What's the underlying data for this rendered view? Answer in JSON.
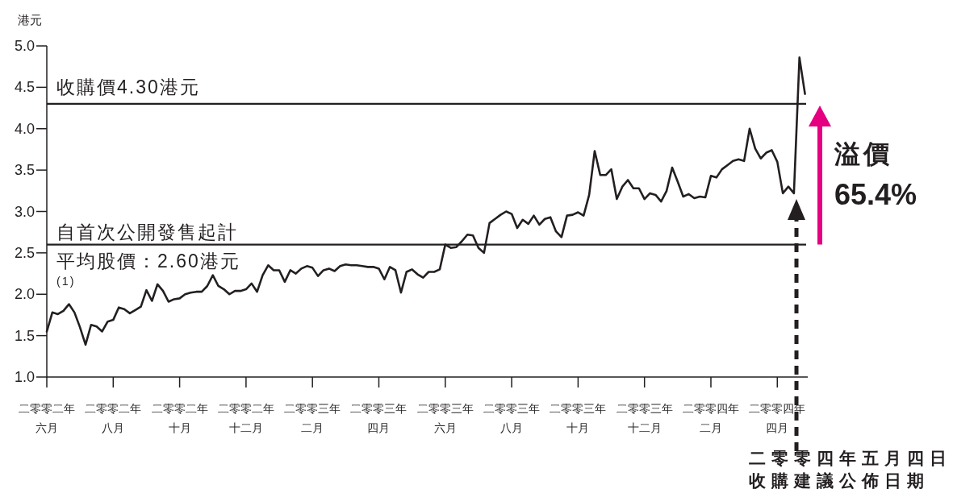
{
  "chart_data": {
    "type": "line",
    "ylabel": "港元",
    "categories": [
      "二零零二年六月",
      null,
      null,
      null,
      null,
      null,
      null,
      null,
      null,
      null,
      null,
      null,
      "二零零二年八月",
      null,
      null,
      null,
      null,
      null,
      null,
      null,
      null,
      null,
      null,
      null,
      "二零零二年十月",
      null,
      null,
      null,
      null,
      null,
      null,
      null,
      null,
      null,
      null,
      null,
      "二零零二年十二月",
      null,
      null,
      null,
      null,
      null,
      null,
      null,
      null,
      null,
      null,
      null,
      "二零零三年二月",
      null,
      null,
      null,
      null,
      null,
      null,
      null,
      null,
      null,
      null,
      null,
      "二零零三年四月",
      null,
      null,
      null,
      null,
      null,
      null,
      null,
      null,
      null,
      null,
      null,
      "二零零三年六月",
      null,
      null,
      null,
      null,
      null,
      null,
      null,
      null,
      null,
      null,
      null,
      "二零零三年八月",
      null,
      null,
      null,
      null,
      null,
      null,
      null,
      null,
      null,
      null,
      null,
      "二零零三年十月",
      null,
      null,
      null,
      null,
      null,
      null,
      null,
      null,
      null,
      null,
      null,
      "二零零三年十二月",
      null,
      null,
      null,
      null,
      null,
      null,
      null,
      null,
      null,
      null,
      null,
      "二零零四年二月",
      null,
      null,
      null,
      null,
      null,
      null,
      null,
      null,
      null,
      null,
      null,
      "二零零四年四月",
      null,
      null,
      null,
      null,
      null
    ],
    "series": [
      {
        "color": "#231f20",
        "values": [
          1.55,
          1.78,
          1.76,
          1.8,
          1.88,
          1.78,
          1.6,
          1.39,
          1.63,
          1.61,
          1.55,
          1.67,
          1.69,
          1.84,
          1.82,
          1.77,
          1.81,
          1.85,
          2.05,
          1.92,
          2.12,
          2.04,
          1.91,
          1.94,
          1.95,
          2.0,
          2.02,
          2.03,
          2.03,
          2.1,
          2.23,
          2.1,
          2.06,
          2.0,
          2.04,
          2.04,
          2.06,
          2.13,
          2.03,
          2.23,
          2.35,
          2.29,
          2.29,
          2.15,
          2.29,
          2.25,
          2.31,
          2.34,
          2.32,
          2.22,
          2.29,
          2.31,
          2.28,
          2.34,
          2.36,
          2.35,
          2.35,
          2.34,
          2.33,
          2.33,
          2.31,
          2.18,
          2.33,
          2.29,
          2.02,
          2.27,
          2.3,
          2.24,
          2.2,
          2.27,
          2.27,
          2.3,
          2.6,
          2.56,
          2.57,
          2.64,
          2.72,
          2.71,
          2.56,
          2.5,
          2.86,
          2.91,
          2.96,
          3.0,
          2.97,
          2.8,
          2.9,
          2.85,
          2.95,
          2.84,
          2.91,
          2.93,
          2.76,
          2.69,
          2.95,
          2.96,
          2.99,
          2.95,
          3.2,
          3.73,
          3.44,
          3.44,
          3.51,
          3.15,
          3.3,
          3.38,
          3.28,
          3.28,
          3.15,
          3.22,
          3.2,
          3.12,
          3.25,
          3.53,
          3.36,
          3.18,
          3.21,
          3.16,
          3.18,
          3.17,
          3.43,
          3.41,
          3.51,
          3.56,
          3.61,
          3.63,
          3.61,
          4.0,
          3.76,
          3.64,
          3.71,
          3.74,
          3.6,
          3.22,
          3.3,
          3.22,
          4.86,
          4.42
        ]
      }
    ],
    "ylim": [
      1,
      5
    ],
    "yticks": [
      {
        "value": 1,
        "label": "1.0"
      },
      {
        "value": 1.5,
        "label": "1.5"
      },
      {
        "value": 2,
        "label": "2.0"
      },
      {
        "value": 2.5,
        "label": "2.5"
      },
      {
        "value": 3,
        "label": "3.0"
      },
      {
        "value": 3.5,
        "label": "3.5"
      },
      {
        "value": 4,
        "label": "4.0"
      },
      {
        "value": 4.5,
        "label": "4.5"
      },
      {
        "value": 5,
        "label": "5.0"
      }
    ],
    "ref_lines": [
      {
        "axis": "y",
        "value": 4.3,
        "label": "收購價4.30港元"
      },
      {
        "axis": "y",
        "value": 2.6,
        "label": "自首次公開發售起計平均股價：2.60港元$^{(1)}$"
      }
    ],
    "annotations": [
      "溢價\n65.4%",
      "二零零四年五月四日收購建議公佈日期"
    ],
    "grid": false
  }
}
